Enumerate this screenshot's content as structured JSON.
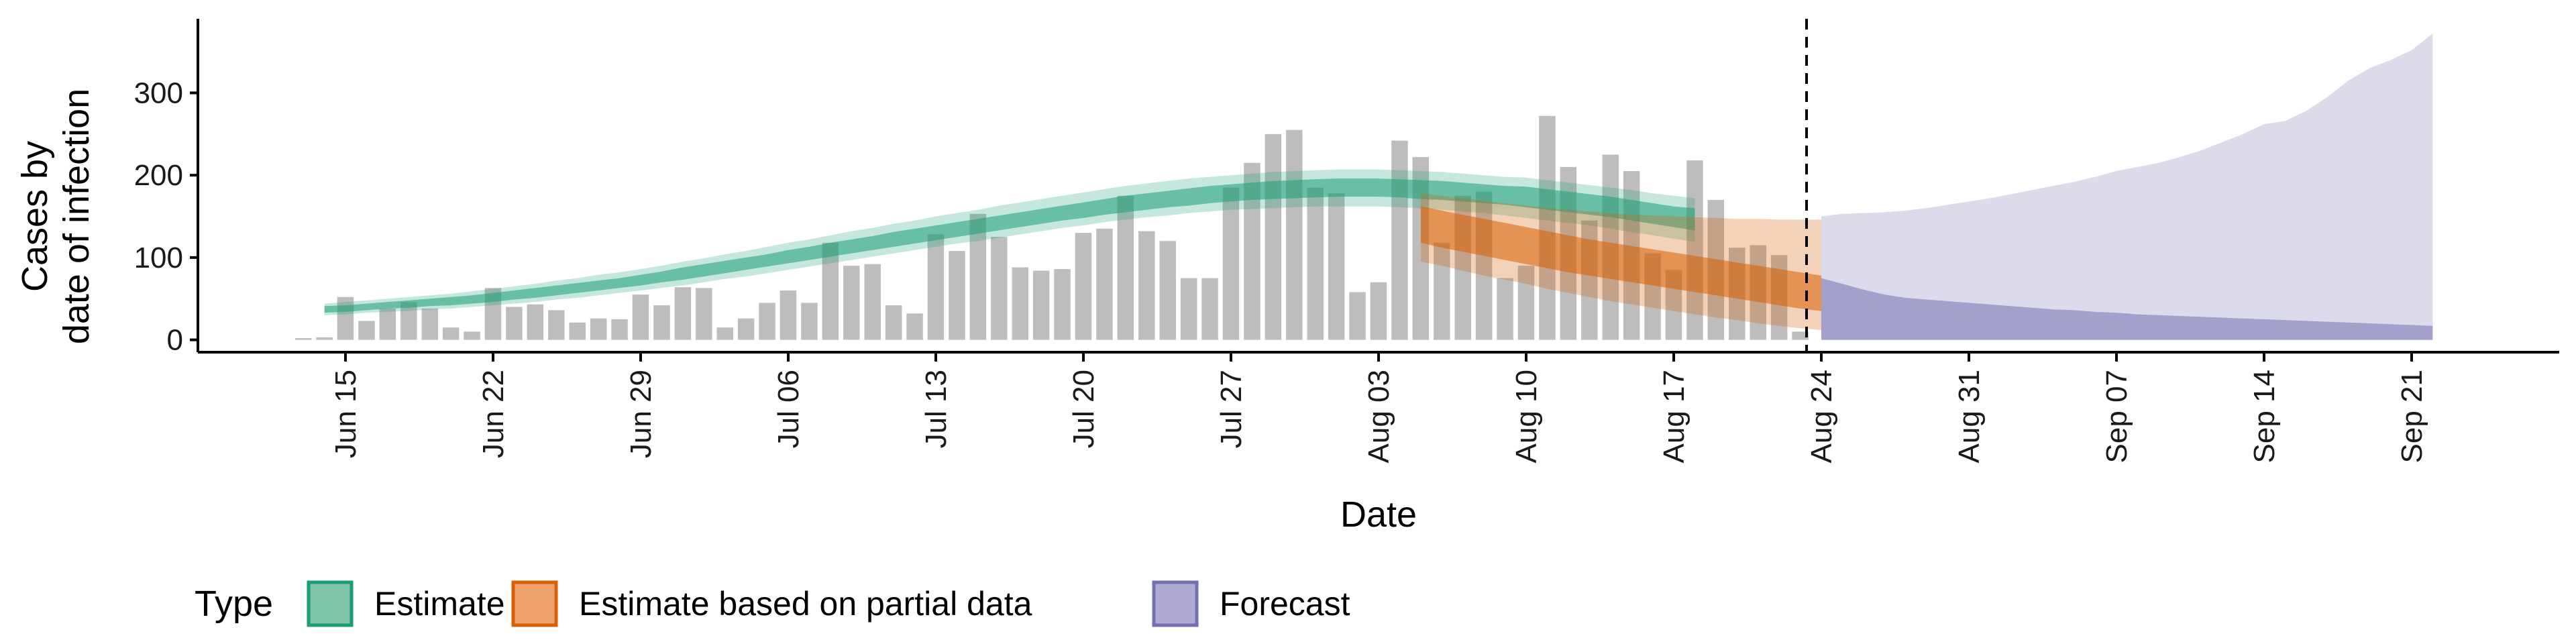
{
  "chart_data": {
    "type": "bar",
    "xlabel": "Date",
    "ylabel_lines": [
      "Cases by",
      "date of infection"
    ],
    "y_ticks": [
      0,
      100,
      200,
      300
    ],
    "ylim": [
      -15,
      390
    ],
    "xlim": [
      "2020-06-08",
      "2020-09-28"
    ],
    "x_ticks": [
      {
        "date": "2020-06-15",
        "label": "Jun 15"
      },
      {
        "date": "2020-06-22",
        "label": "Jun 22"
      },
      {
        "date": "2020-06-29",
        "label": "Jun 29"
      },
      {
        "date": "2020-07-06",
        "label": "Jul 06"
      },
      {
        "date": "2020-07-13",
        "label": "Jul 13"
      },
      {
        "date": "2020-07-20",
        "label": "Jul 20"
      },
      {
        "date": "2020-07-27",
        "label": "Jul 27"
      },
      {
        "date": "2020-08-03",
        "label": "Aug 03"
      },
      {
        "date": "2020-08-10",
        "label": "Aug 10"
      },
      {
        "date": "2020-08-17",
        "label": "Aug 17"
      },
      {
        "date": "2020-08-24",
        "label": "Aug 24"
      },
      {
        "date": "2020-08-31",
        "label": "Aug 31"
      },
      {
        "date": "2020-09-07",
        "label": "Sep 07"
      },
      {
        "date": "2020-09-14",
        "label": "Sep 14"
      },
      {
        "date": "2020-09-21",
        "label": "Sep 21"
      }
    ],
    "vline_date": "2020-08-23",
    "grid": false,
    "legend_placement": "bottom-left",
    "legend_title": "Type",
    "legend": [
      {
        "label": "Estimate",
        "fill": "#7fc4a8",
        "stroke": "#1b9e77"
      },
      {
        "label": "Estimate based on partial data",
        "fill": "#eda26c",
        "stroke": "#d95f02"
      },
      {
        "label": "Forecast",
        "fill": "#aeaad3",
        "stroke": "#7570b3"
      }
    ],
    "bars": {
      "start": "2020-06-13",
      "color": "#bdbdbd",
      "values": [
        2,
        3,
        52,
        23,
        38,
        46,
        38,
        15,
        10,
        63,
        40,
        43,
        36,
        21,
        26,
        25,
        55,
        42,
        64,
        63,
        15,
        26,
        45,
        60,
        45,
        118,
        90,
        92,
        42,
        32,
        128,
        108,
        153,
        125,
        88,
        84,
        86,
        130,
        135,
        175,
        132,
        120,
        75,
        75,
        185,
        215,
        250,
        255,
        185,
        178,
        58,
        70,
        242,
        222,
        118,
        175,
        180,
        75,
        90,
        272,
        210,
        145,
        225,
        205,
        105,
        85,
        218,
        170,
        112,
        115,
        103,
        10
      ]
    },
    "estimate": {
      "start": "2020-06-14",
      "median": [
        37,
        38,
        40,
        42,
        43,
        45,
        47,
        49,
        51,
        54,
        57,
        60,
        63,
        66,
        69,
        73,
        77,
        81,
        85,
        89,
        93,
        97,
        101,
        105,
        110,
        114,
        118,
        122,
        126,
        130,
        134,
        138,
        142,
        146,
        150,
        154,
        158,
        162,
        165,
        168,
        171,
        174,
        177,
        179,
        181,
        182,
        183,
        184,
        185,
        185,
        185,
        184,
        183,
        182,
        180,
        178,
        176,
        174,
        171,
        168,
        165,
        162,
        158,
        154,
        150,
        147
      ],
      "inner_lo": [
        33,
        34,
        36,
        38,
        39,
        41,
        42,
        44,
        46,
        49,
        51,
        54,
        57,
        60,
        63,
        66,
        70,
        73,
        77,
        81,
        85,
        89,
        93,
        97,
        101,
        105,
        109,
        113,
        117,
        121,
        125,
        129,
        133,
        137,
        141,
        145,
        148,
        152,
        155,
        158,
        161,
        163,
        166,
        168,
        170,
        171,
        172,
        173,
        174,
        174,
        174,
        173,
        171,
        170,
        168,
        166,
        164,
        161,
        158,
        155,
        152,
        149,
        145,
        141,
        137,
        133
      ],
      "inner_hi": [
        41,
        42,
        44,
        46,
        48,
        50,
        52,
        54,
        57,
        60,
        63,
        66,
        69,
        72,
        75,
        79,
        83,
        88,
        92,
        96,
        100,
        104,
        109,
        113,
        118,
        122,
        126,
        131,
        135,
        139,
        143,
        147,
        151,
        155,
        159,
        163,
        167,
        171,
        175,
        178,
        181,
        184,
        187,
        189,
        191,
        193,
        194,
        195,
        196,
        196,
        196,
        195,
        194,
        193,
        191,
        189,
        187,
        186,
        183,
        180,
        177,
        174,
        170,
        166,
        162,
        160
      ],
      "outer_lo": [
        30,
        31,
        33,
        34,
        35,
        37,
        38,
        40,
        42,
        44,
        46,
        49,
        51,
        54,
        57,
        60,
        63,
        66,
        70,
        74,
        77,
        81,
        85,
        89,
        93,
        97,
        101,
        105,
        109,
        113,
        117,
        120,
        124,
        128,
        132,
        136,
        139,
        143,
        146,
        149,
        151,
        154,
        156,
        158,
        159,
        160,
        161,
        162,
        162,
        162,
        162,
        161,
        160,
        158,
        156,
        154,
        151,
        148,
        145,
        142,
        139,
        135,
        131,
        127,
        123,
        119
      ],
      "outer_hi": [
        44,
        46,
        48,
        50,
        52,
        54,
        56,
        59,
        62,
        65,
        68,
        72,
        75,
        79,
        82,
        86,
        90,
        95,
        99,
        104,
        108,
        113,
        118,
        122,
        127,
        132,
        136,
        141,
        145,
        150,
        154,
        158,
        163,
        167,
        171,
        175,
        179,
        183,
        187,
        190,
        193,
        196,
        198,
        200,
        202,
        204,
        205,
        206,
        207,
        207,
        207,
        206,
        205,
        204,
        202,
        200,
        198,
        197,
        194,
        191,
        188,
        185,
        182,
        178,
        175,
        172
      ]
    },
    "partial": {
      "start": "2020-08-05",
      "median": [
        145,
        138,
        132,
        126,
        121,
        116,
        111,
        106,
        101,
        97,
        93,
        89,
        85,
        81,
        77,
        73,
        69,
        65,
        61,
        58
      ],
      "inner_lo": [
        118,
        112,
        107,
        102,
        97,
        92,
        87,
        82,
        78,
        74,
        70,
        66,
        62,
        58,
        54,
        50,
        46,
        42,
        38,
        35
      ],
      "inner_hi": [
        162,
        157,
        152,
        147,
        142,
        137,
        132,
        127,
        122,
        118,
        114,
        110,
        106,
        102,
        98,
        94,
        90,
        86,
        82,
        78
      ],
      "outer_lo": [
        95,
        90,
        84,
        78,
        73,
        68,
        62,
        57,
        52,
        47,
        43,
        39,
        35,
        31,
        27,
        24,
        20,
        17,
        14,
        12
      ],
      "outer_hi": [
        178,
        175,
        172,
        169,
        166,
        163,
        160,
        158,
        156,
        154,
        152,
        151,
        150,
        149,
        148,
        147,
        147,
        146,
        146,
        146
      ]
    },
    "forecast": {
      "start": "2020-08-24",
      "inner_lo": [
        0,
        0,
        0,
        0,
        0,
        0,
        0,
        0,
        0,
        0,
        0,
        0,
        0,
        0,
        0,
        0,
        0,
        0,
        0,
        0,
        0,
        0,
        0,
        0,
        0,
        0,
        0,
        0,
        0,
        0
      ],
      "inner_hi": [
        75,
        68,
        61,
        55,
        51,
        49,
        47,
        45,
        43,
        41,
        39,
        37,
        36,
        34,
        33,
        31,
        30,
        29,
        28,
        27,
        26,
        25,
        24,
        23,
        22,
        21,
        20,
        19,
        18,
        17
      ],
      "outer_lo": [
        0,
        0,
        0,
        0,
        0,
        0,
        0,
        0,
        0,
        0,
        0,
        0,
        0,
        0,
        0,
        0,
        0,
        0,
        0,
        0,
        0,
        0,
        0,
        0,
        0,
        0,
        0,
        0,
        0,
        0
      ],
      "outer_hi": [
        150,
        153,
        154,
        155,
        157,
        160,
        164,
        168,
        172,
        177,
        182,
        187,
        192,
        198,
        205,
        210,
        215,
        222,
        230,
        240,
        250,
        262,
        266,
        278,
        295,
        315,
        330,
        340,
        352,
        372
      ]
    }
  }
}
